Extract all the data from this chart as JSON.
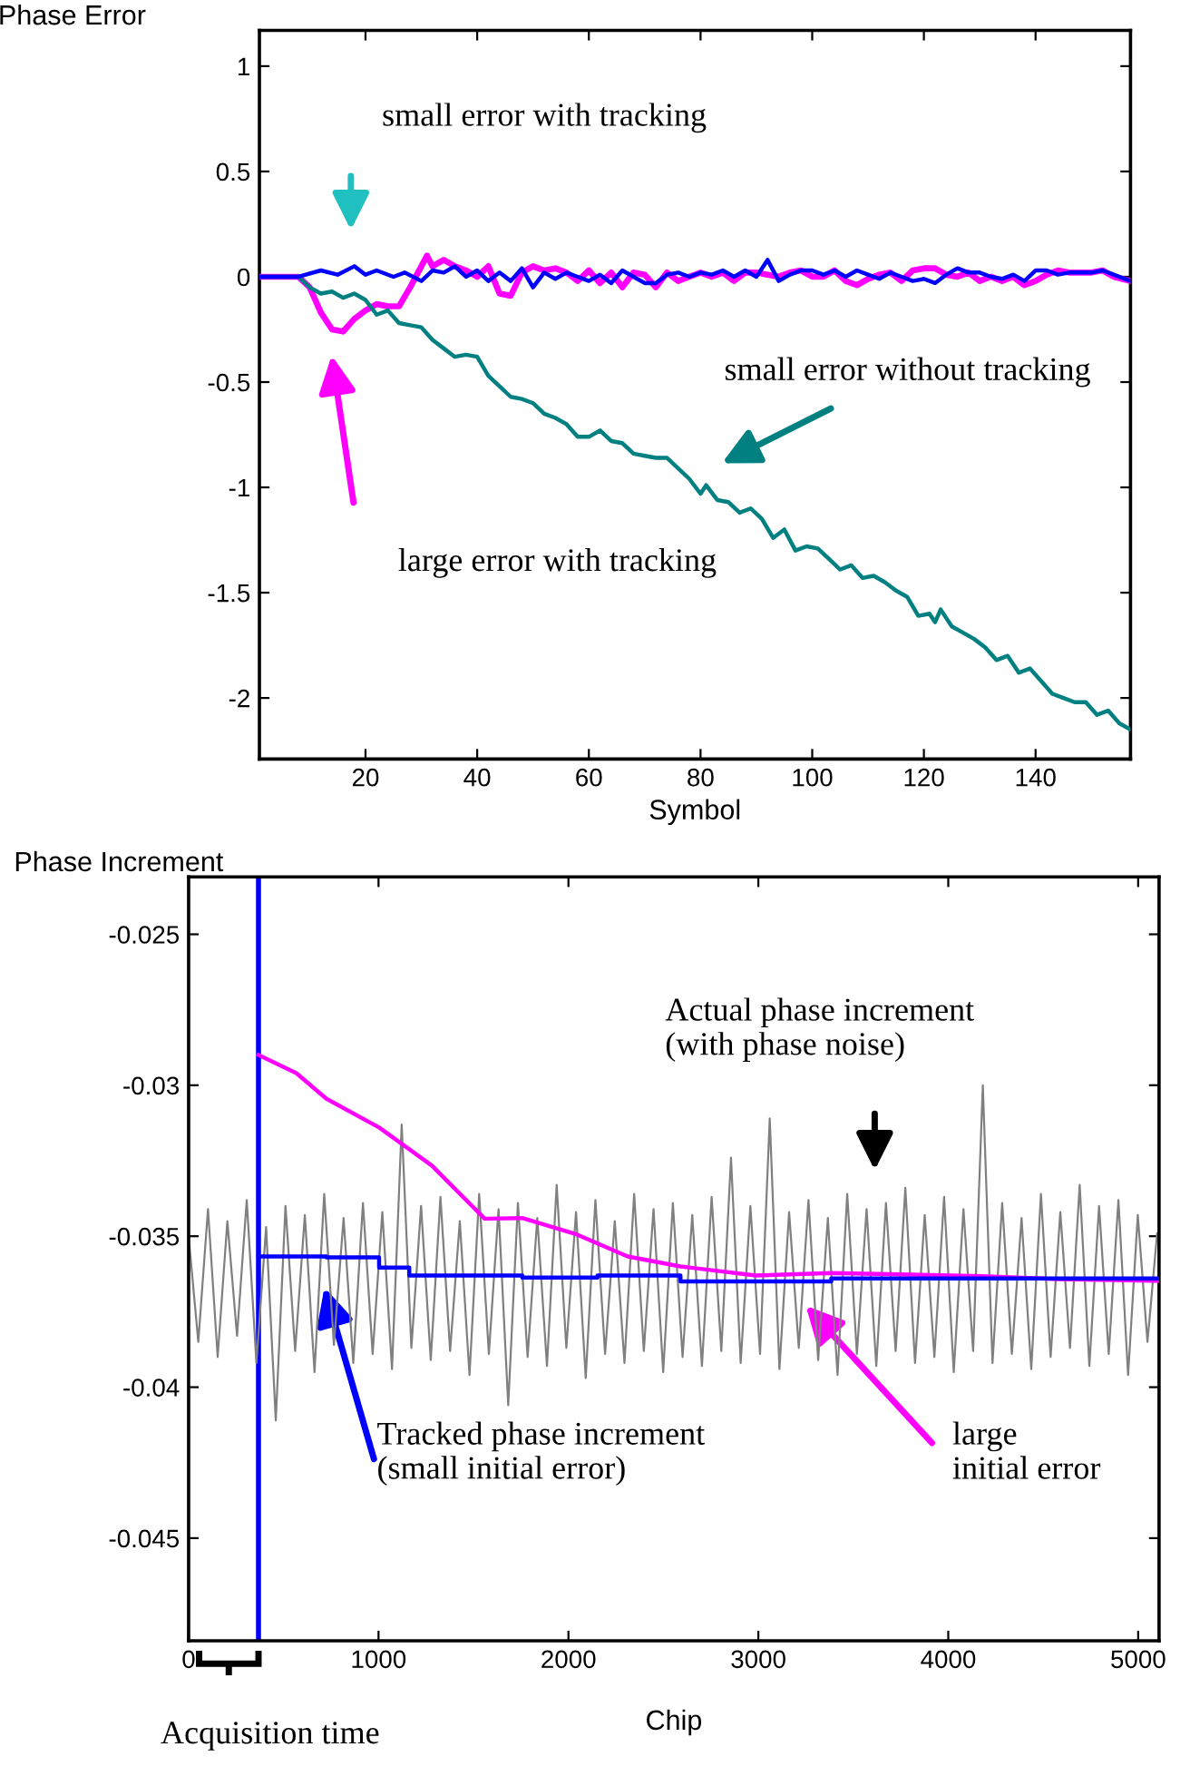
{
  "chart_data": [
    {
      "type": "line",
      "xlabel": "Symbol",
      "ylabel": "Phase Error",
      "xlim": [
        1,
        157
      ],
      "ylim": [
        -2.29,
        1.17
      ],
      "xticks": [
        20,
        40,
        60,
        80,
        100,
        120,
        140
      ],
      "yticks": [
        -2,
        -1.5,
        -1,
        -0.5,
        0,
        0.5,
        1
      ],
      "grid": false,
      "legend": false,
      "marker": "none",
      "line_style": "solid",
      "series": [
        {
          "color": "#0000ff",
          "x": [
            1,
            8,
            12,
            15,
            18,
            20,
            22,
            25,
            27,
            30,
            32,
            34,
            36,
            38,
            40,
            42,
            44,
            46,
            48,
            50,
            52,
            54,
            56,
            58,
            60,
            62,
            64,
            66,
            68,
            70,
            72,
            74,
            76,
            78,
            80,
            82,
            84,
            86,
            88,
            90,
            92,
            94,
            96,
            98,
            100,
            102,
            104,
            106,
            108,
            110,
            112,
            114,
            116,
            118,
            120,
            122,
            124,
            126,
            128,
            130,
            132,
            134,
            136,
            138,
            140,
            142,
            144,
            146,
            148,
            150,
            152,
            154,
            157
          ],
          "values": [
            0,
            0,
            0.03,
            0.01,
            0.05,
            0.01,
            0.03,
            0,
            0.02,
            -0.02,
            0.03,
            0.02,
            0.05,
            0,
            0.03,
            -0.02,
            0.02,
            -0.02,
            0.04,
            -0.05,
            0.02,
            -0.01,
            0.02,
            0,
            -0.02,
            0.01,
            -0.03,
            0.03,
            0,
            -0.03,
            -0.03,
            0.01,
            0.02,
            0,
            0.02,
            0.01,
            0.03,
            0,
            0.03,
            0,
            0.08,
            -0.02,
            0.01,
            0.03,
            0.03,
            0.01,
            0.03,
            0,
            0.03,
            0.01,
            -0.01,
            0.02,
            0,
            -0.02,
            -0.01,
            -0.03,
            0.01,
            0.04,
            0.02,
            0.02,
            0,
            -0.01,
            0.01,
            -0.02,
            0.03,
            0.03,
            0.01,
            0.02,
            0.02,
            0.02,
            0.03,
            0.01,
            -0.02
          ]
        },
        {
          "color": "#ff00ff",
          "x": [
            1,
            8,
            10,
            12,
            14,
            16,
            18,
            20,
            22,
            24,
            26,
            28,
            30,
            31,
            32,
            34,
            36,
            38,
            40,
            42,
            44,
            46,
            48,
            50,
            52,
            54,
            56,
            58,
            60,
            62,
            64,
            66,
            68,
            70,
            72,
            74,
            76,
            78,
            80,
            82,
            84,
            86,
            88,
            90,
            92,
            94,
            96,
            98,
            100,
            102,
            104,
            106,
            108,
            110,
            112,
            114,
            116,
            118,
            120,
            122,
            124,
            126,
            128,
            130,
            132,
            134,
            136,
            138,
            140,
            142,
            144,
            146,
            148,
            150,
            152,
            154,
            157
          ],
          "values": [
            0,
            0,
            -0.05,
            -0.17,
            -0.25,
            -0.26,
            -0.2,
            -0.16,
            -0.13,
            -0.14,
            -0.14,
            -0.05,
            0.05,
            0.1,
            0.05,
            0.08,
            0.05,
            0.03,
            0,
            0.05,
            -0.08,
            -0.09,
            0.02,
            0.05,
            0.03,
            0.04,
            0.02,
            -0.02,
            0.03,
            -0.03,
            0.02,
            -0.05,
            0.02,
            0.01,
            -0.05,
            0.02,
            -0.02,
            0,
            0.02,
            0,
            0.02,
            -0.02,
            0.02,
            0.02,
            0.01,
            0,
            0.02,
            0.03,
            0,
            0,
            0.03,
            -0.02,
            -0.04,
            -0.01,
            0.01,
            0.02,
            -0.02,
            0.03,
            0.04,
            0.04,
            0.01,
            0,
            0.02,
            -0.02,
            0,
            -0.02,
            0,
            -0.04,
            -0.02,
            0.01,
            0.03,
            0.02,
            0.02,
            0.02,
            0.03,
            0,
            -0.02
          ]
        },
        {
          "color": "#008080",
          "x": [
            1,
            8,
            10,
            12,
            14,
            16,
            18,
            20,
            22,
            24,
            26,
            28,
            30,
            32,
            34,
            36,
            38,
            40,
            42,
            44,
            46,
            48,
            50,
            52,
            54,
            56,
            58,
            60,
            62,
            64,
            66,
            68,
            70,
            72,
            74,
            76,
            78,
            80,
            81,
            83,
            85,
            87,
            89,
            91,
            93,
            95,
            97,
            99,
            101,
            103,
            105,
            107,
            109,
            111,
            113,
            115,
            117,
            119,
            121,
            122,
            123,
            125,
            127,
            129,
            131,
            133,
            135,
            137,
            139,
            141,
            143,
            145,
            147,
            149,
            151,
            153,
            155,
            157
          ],
          "values": [
            0,
            0,
            -0.05,
            -0.08,
            -0.07,
            -0.1,
            -0.08,
            -0.11,
            -0.18,
            -0.16,
            -0.22,
            -0.23,
            -0.24,
            -0.3,
            -0.34,
            -0.38,
            -0.37,
            -0.38,
            -0.47,
            -0.52,
            -0.57,
            -0.58,
            -0.6,
            -0.65,
            -0.67,
            -0.7,
            -0.76,
            -0.76,
            -0.73,
            -0.78,
            -0.79,
            -0.84,
            -0.85,
            -0.86,
            -0.86,
            -0.91,
            -0.96,
            -1.03,
            -0.99,
            -1.06,
            -1.07,
            -1.12,
            -1.1,
            -1.15,
            -1.24,
            -1.2,
            -1.3,
            -1.28,
            -1.29,
            -1.34,
            -1.39,
            -1.37,
            -1.43,
            -1.42,
            -1.45,
            -1.49,
            -1.52,
            -1.61,
            -1.6,
            -1.64,
            -1.58,
            -1.66,
            -1.69,
            -1.72,
            -1.76,
            -1.82,
            -1.8,
            -1.88,
            -1.86,
            -1.92,
            -1.98,
            -2.0,
            -2.02,
            -2.02,
            -2.08,
            -2.06,
            -2.12,
            -2.15
          ]
        }
      ],
      "annotations": [
        "small error with tracking",
        "small error without tracking",
        "large error with tracking"
      ]
    },
    {
      "type": "line",
      "xlabel": "Chip",
      "ylabel": "Phase Increment",
      "xlim": [
        0,
        5110
      ],
      "ylim": [
        -0.0484,
        -0.0231
      ],
      "xticks": [
        0,
        1000,
        2000,
        3000,
        4000,
        5000
      ],
      "yticks": [
        -0.045,
        -0.04,
        -0.035,
        -0.03,
        -0.025
      ],
      "grid": false,
      "legend": false,
      "marker": "none",
      "line_style": "solid",
      "ref_lines": [
        {
          "axis": "x",
          "value": 368,
          "color": "#0000ff"
        }
      ],
      "series": [
        {
          "color": "#808080",
          "x": [
            0,
            51,
            102,
            153,
            204,
            255,
            306,
            357,
            408,
            459,
            510,
            561,
            612,
            663,
            714,
            765,
            816,
            867,
            918,
            969,
            1020,
            1071,
            1122,
            1173,
            1224,
            1275,
            1326,
            1377,
            1428,
            1479,
            1530,
            1581,
            1632,
            1683,
            1734,
            1785,
            1836,
            1887,
            1938,
            1989,
            2040,
            2091,
            2142,
            2193,
            2244,
            2295,
            2346,
            2397,
            2448,
            2499,
            2550,
            2601,
            2652,
            2703,
            2754,
            2805,
            2856,
            2907,
            2958,
            3009,
            3060,
            3111,
            3162,
            3213,
            3264,
            3315,
            3366,
            3417,
            3468,
            3519,
            3570,
            3621,
            3672,
            3723,
            3774,
            3825,
            3876,
            3927,
            3978,
            4029,
            4080,
            4131,
            4182,
            4233,
            4284,
            4335,
            4386,
            4437,
            4488,
            4539,
            4590,
            4641,
            4692,
            4743,
            4794,
            4845,
            4896,
            4947,
            4998,
            5049,
            5100
          ],
          "values": [
            -0.035,
            -0.0385,
            -0.0341,
            -0.039,
            -0.0345,
            -0.0383,
            -0.0338,
            -0.0392,
            -0.0347,
            -0.0411,
            -0.034,
            -0.0388,
            -0.0343,
            -0.0395,
            -0.0336,
            -0.0386,
            -0.0344,
            -0.0392,
            -0.0339,
            -0.0389,
            -0.0342,
            -0.0394,
            -0.0313,
            -0.0387,
            -0.034,
            -0.0391,
            -0.0337,
            -0.0388,
            -0.0345,
            -0.0396,
            -0.0336,
            -0.0389,
            -0.0341,
            -0.0406,
            -0.0339,
            -0.039,
            -0.0344,
            -0.0393,
            -0.0333,
            -0.0387,
            -0.0342,
            -0.0397,
            -0.0338,
            -0.0389,
            -0.0345,
            -0.0392,
            -0.0336,
            -0.0388,
            -0.0341,
            -0.0395,
            -0.0339,
            -0.039,
            -0.0343,
            -0.0393,
            -0.0337,
            -0.0388,
            -0.0324,
            -0.0392,
            -0.034,
            -0.0389,
            -0.0311,
            -0.0394,
            -0.0342,
            -0.0387,
            -0.0338,
            -0.0391,
            -0.0344,
            -0.0396,
            -0.0336,
            -0.0389,
            -0.0341,
            -0.0393,
            -0.0339,
            -0.0388,
            -0.0334,
            -0.0392,
            -0.0343,
            -0.039,
            -0.0337,
            -0.0395,
            -0.0341,
            -0.0388,
            -0.03,
            -0.0392,
            -0.0339,
            -0.0389,
            -0.0344,
            -0.0394,
            -0.0336,
            -0.039,
            -0.0342,
            -0.0387,
            -0.0333,
            -0.0393,
            -0.034,
            -0.0389,
            -0.0338,
            -0.0396,
            -0.0343,
            -0.0385,
            -0.0349
          ]
        },
        {
          "type": "line",
          "color": "#ff00ff",
          "x": [
            368,
            567,
            726,
            1003,
            1281,
            1559,
            1757,
            2035,
            2312,
            2590,
            2987,
            3384,
            4178,
            4575,
            5110
          ],
          "values": [
            -0.029,
            -0.0296,
            -0.03045,
            -0.0314,
            -0.03266,
            -0.03442,
            -0.0344,
            -0.03492,
            -0.03567,
            -0.036,
            -0.0363,
            -0.03622,
            -0.03632,
            -0.03642,
            -0.03648
          ]
        },
        {
          "type": "step",
          "color": "#0000ff",
          "x": [
            368,
            726,
            1003,
            1162,
            1757,
            2153,
            2590,
            2987,
            3384,
            4376,
            5110
          ],
          "values": [
            -0.03567,
            -0.0357,
            -0.03604,
            -0.0363,
            -0.03637,
            -0.0363,
            -0.0365,
            -0.0365,
            -0.0364,
            -0.0364,
            -0.0364
          ]
        }
      ],
      "annotations": [
        "Actual phase increment\n(with phase noise)",
        {
          "text": "Tracked phase increment\n(small initial error)",
          "x": 715,
          "y": -0.0367
        },
        {
          "text": "large\ninitial error",
          "x": 3250,
          "y": -0.0373
        },
        "Acquisition time"
      ]
    }
  ]
}
